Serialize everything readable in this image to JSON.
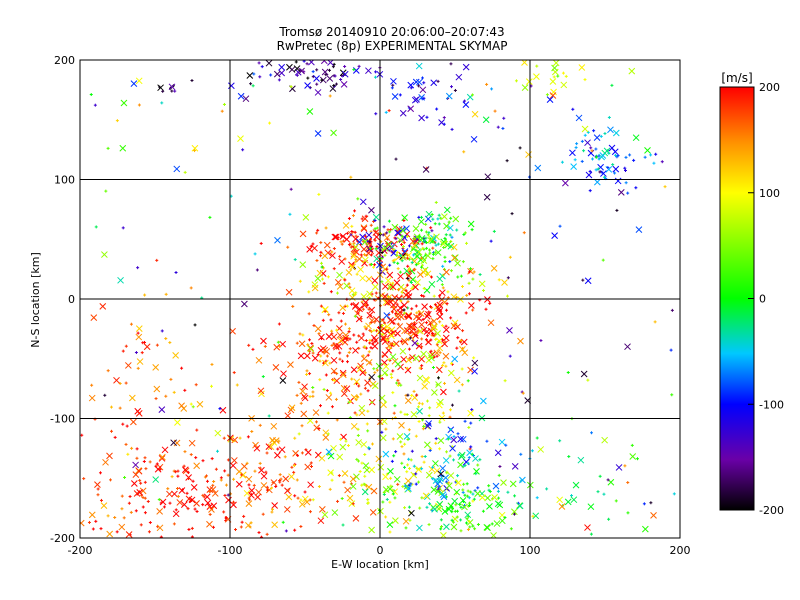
{
  "chart_data": {
    "type": "scatter",
    "title": "Tromsø 20140910 20:06:00–20:07:43",
    "subtitle": "RwPretec (8p) EXPERIMENTAL SKYMAP",
    "xlabel": "E-W location [km]",
    "ylabel": "N-S location [km]",
    "xlim": [
      -200,
      200
    ],
    "ylim": [
      -200,
      200
    ],
    "x_ticks": [
      -200,
      -100,
      0,
      100,
      200
    ],
    "y_ticks": [
      -200,
      -100,
      0,
      100,
      200
    ],
    "x_tick_labels": [
      "-200",
      "-100",
      "0",
      "100",
      "200"
    ],
    "y_tick_labels": [
      "-200",
      "-100",
      "0",
      "100",
      "200"
    ],
    "grid": true,
    "markers": [
      "cross",
      "plus"
    ],
    "colorbar": {
      "label": "[m/s]",
      "range": [
        -200,
        200
      ],
      "tick_values": [
        200,
        100,
        0,
        -100,
        -200
      ],
      "tick_labels": [
        "200",
        "100",
        "0",
        "-100",
        "-200"
      ],
      "colormap": "rainbow (black-purple-blue-cyan-green-yellow-red)"
    },
    "clusters": [
      {
        "cx": -45,
        "cy": 190,
        "sx": 20,
        "sy": 8,
        "vel": -160,
        "n": 70
      },
      {
        "cx": 30,
        "cy": 170,
        "sx": 25,
        "sy": 15,
        "vel": -110,
        "n": 45
      },
      {
        "cx": 150,
        "cy": 120,
        "sx": 15,
        "sy": 15,
        "vel": -60,
        "n": 70
      },
      {
        "cx": 115,
        "cy": 190,
        "sx": 12,
        "sy": 8,
        "vel": 80,
        "n": 20
      },
      {
        "cx": -140,
        "cy": 175,
        "sx": 5,
        "sy": 5,
        "vel": -190,
        "n": 8
      },
      {
        "cx": -10,
        "cy": 45,
        "sx": 18,
        "sy": 12,
        "vel": 190,
        "n": 140
      },
      {
        "cx": 10,
        "cy": 48,
        "sx": 15,
        "sy": 10,
        "vel": -130,
        "n": 45
      },
      {
        "cx": 30,
        "cy": 45,
        "sx": 18,
        "sy": 15,
        "vel": 20,
        "n": 140
      },
      {
        "cx": 10,
        "cy": 15,
        "sx": 30,
        "sy": 15,
        "vel": 110,
        "n": 110
      },
      {
        "cx": 15,
        "cy": -20,
        "sx": 25,
        "sy": 18,
        "vel": 200,
        "n": 280
      },
      {
        "cx": -30,
        "cy": -55,
        "sx": 22,
        "sy": 25,
        "vel": 175,
        "n": 140
      },
      {
        "cx": 20,
        "cy": -65,
        "sx": 25,
        "sy": 25,
        "vel": 95,
        "n": 110
      },
      {
        "cx": -130,
        "cy": -160,
        "sx": 45,
        "sy": 25,
        "vel": 195,
        "n": 220
      },
      {
        "cx": -70,
        "cy": -150,
        "sx": 25,
        "sy": 25,
        "vel": 165,
        "n": 90
      },
      {
        "cx": 10,
        "cy": -140,
        "sx": 25,
        "sy": 25,
        "vel": 90,
        "n": 130
      },
      {
        "cx": 45,
        "cy": -140,
        "sx": 20,
        "sy": 20,
        "vel": -70,
        "n": 90
      },
      {
        "cx": 50,
        "cy": -175,
        "sx": 25,
        "sy": 15,
        "vel": 20,
        "n": 110
      },
      {
        "cx": 120,
        "cy": -160,
        "sx": 40,
        "sy": 30,
        "vel": -20,
        "n": 50
      },
      {
        "cx": -150,
        "cy": -60,
        "sx": 35,
        "sy": 25,
        "vel": 170,
        "n": 50
      },
      {
        "cx": 0,
        "cy": 0,
        "sx": 120,
        "sy": 110,
        "vel": 0,
        "n": 220,
        "random_vel": true
      }
    ]
  }
}
